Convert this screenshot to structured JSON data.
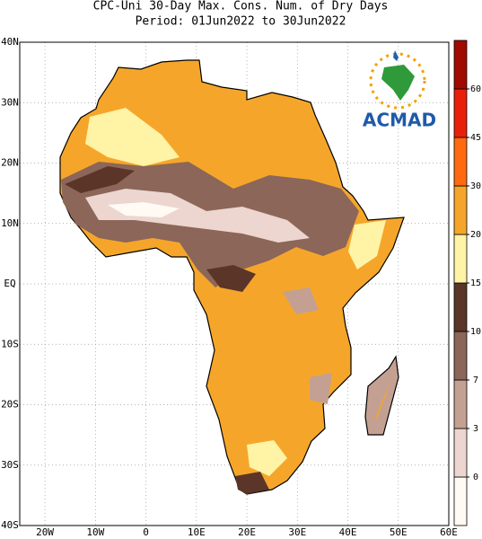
{
  "header": {
    "title": "CPC-Uni 30-Day Max. Cons. Num. of Dry Days",
    "period": "Period: 01Jun2022 to 30Jun2022"
  },
  "map": {
    "lon_ticks": [
      {
        "value": -20,
        "label": "20W"
      },
      {
        "value": -10,
        "label": "10W"
      },
      0,
      {
        "value": 10,
        "label": "10E"
      },
      {
        "value": 20,
        "label": "20E"
      },
      {
        "value": 30,
        "label": "30E"
      },
      {
        "value": 40,
        "label": "40E"
      },
      {
        "value": 50,
        "label": "50E"
      },
      {
        "value": 60,
        "label": "60E"
      }
    ],
    "lat_ticks": [
      {
        "value": 40,
        "label": "40N"
      },
      {
        "value": 30,
        "label": "30N"
      },
      {
        "value": 20,
        "label": "20N"
      },
      {
        "value": 10,
        "label": "10N"
      },
      {
        "value": 0,
        "label": "EQ"
      },
      {
        "value": -10,
        "label": "10S"
      },
      {
        "value": -20,
        "label": "20S"
      },
      {
        "value": -30,
        "label": "30S"
      },
      {
        "value": -40,
        "label": "40S"
      }
    ]
  },
  "legend": {
    "levels": [
      0,
      3,
      7,
      10,
      15,
      20,
      30,
      45,
      60
    ],
    "colors": [
      "#fffaf4",
      "#ecd6cf",
      "#c4a093",
      "#8c6658",
      "#5a3528",
      "#fff3a6",
      "#f5a62a",
      "#ff6a10",
      "#e8200a",
      "#a00a00"
    ]
  },
  "logo": "ACMAD"
}
